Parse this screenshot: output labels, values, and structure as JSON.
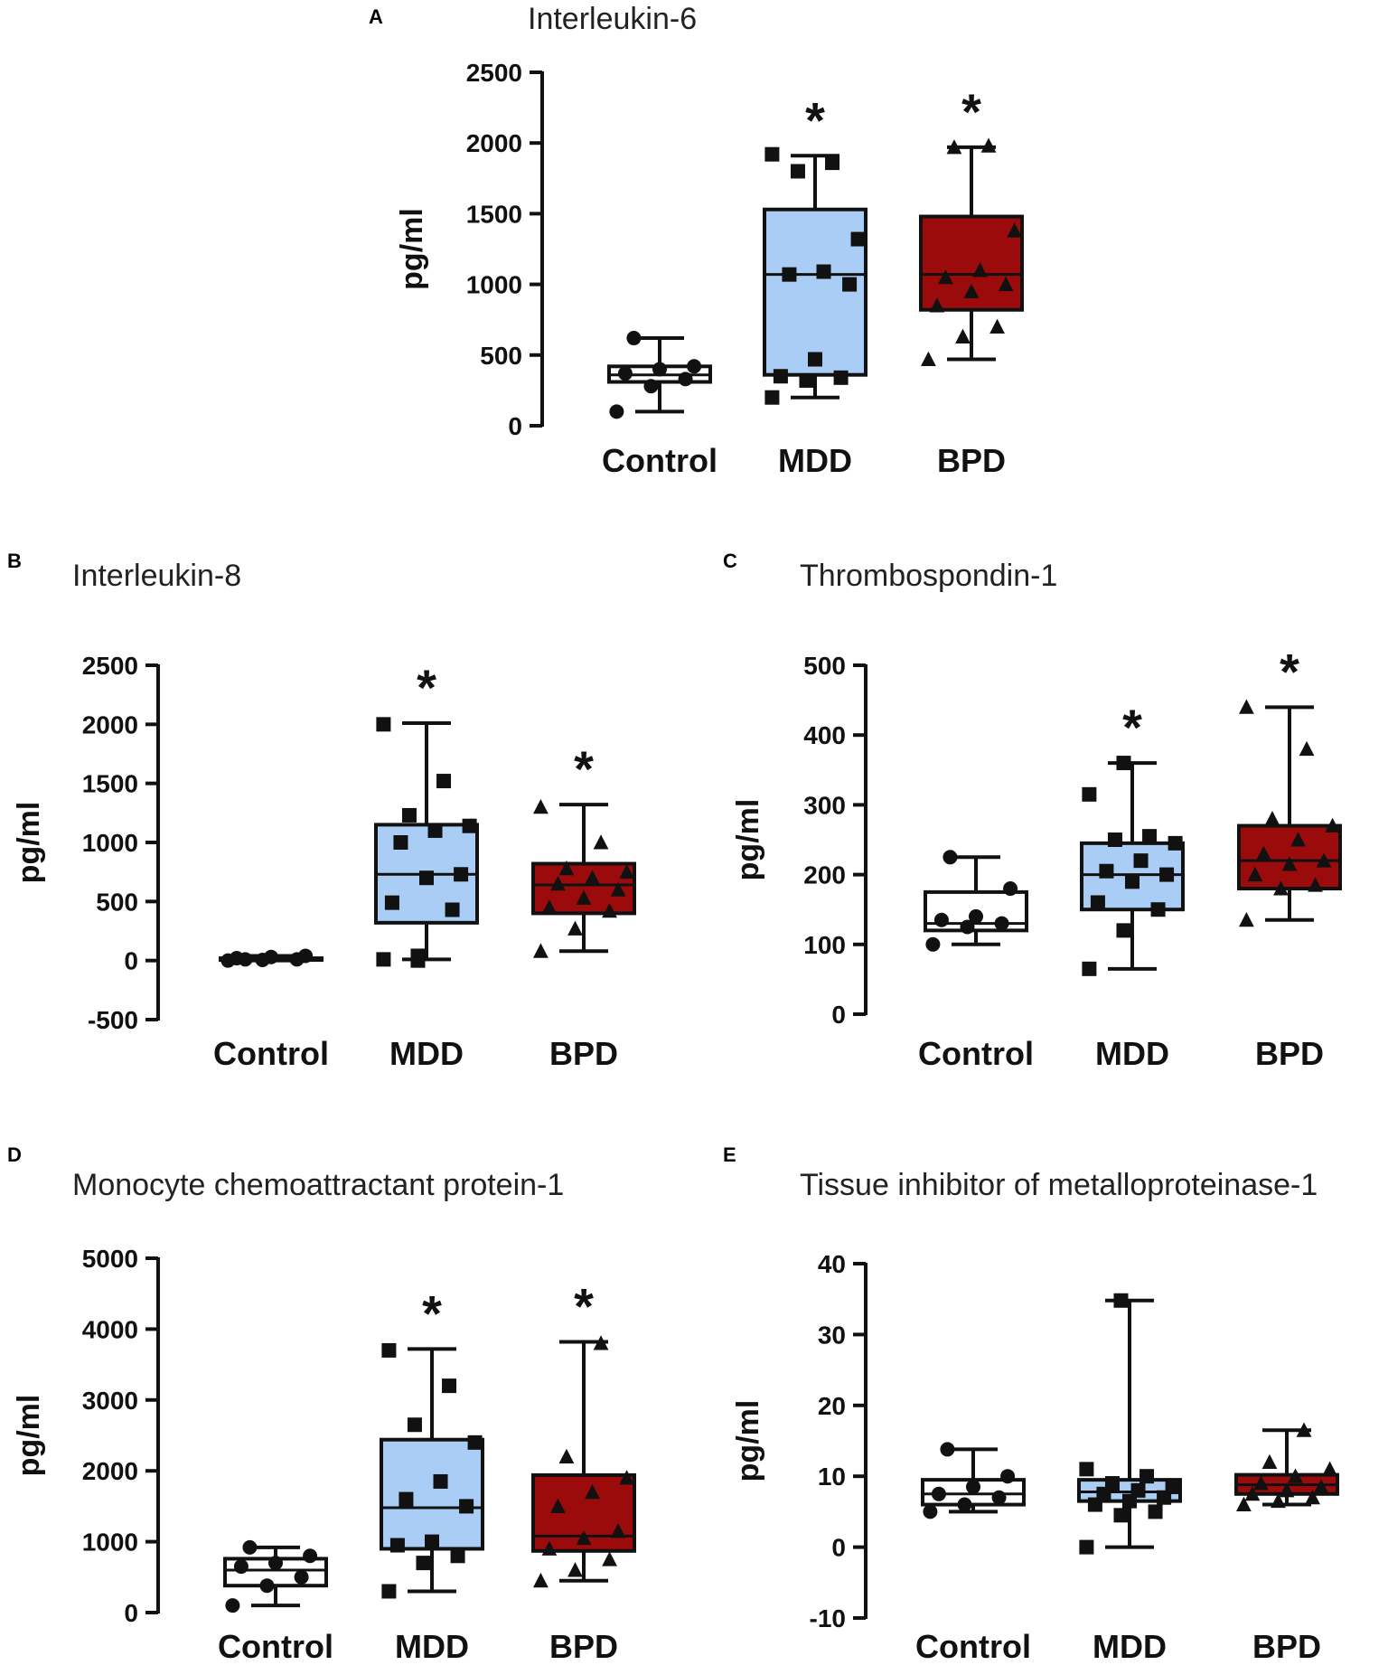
{
  "chart_data": [
    {
      "type": "box",
      "panel": "A",
      "title": "Interleukin-6",
      "ylabel": "pg/ml",
      "ylim": [
        0,
        2500
      ],
      "yticks": [
        0,
        500,
        1000,
        1500,
        2000,
        2500
      ],
      "categories": [
        "Control",
        "MDD",
        "BPD"
      ],
      "series": [
        {
          "name": "Control",
          "fill": "#ffffff",
          "marker": "circle",
          "min": 100,
          "q1": 310,
          "median": 360,
          "q3": 420,
          "max": 620,
          "significant": false,
          "points": [
            100,
            280,
            330,
            370,
            400,
            420,
            620
          ]
        },
        {
          "name": "MDD",
          "fill": "#a9cdf5",
          "marker": "square",
          "min": 200,
          "q1": 360,
          "median": 1070,
          "q3": 1530,
          "max": 1910,
          "significant": true,
          "points": [
            200,
            320,
            340,
            350,
            470,
            1000,
            1070,
            1090,
            1320,
            1800,
            1860,
            1920
          ]
        },
        {
          "name": "BPD",
          "fill": "#9b0b0b",
          "marker": "triangle",
          "min": 470,
          "q1": 820,
          "median": 1070,
          "q3": 1480,
          "max": 1970,
          "significant": true,
          "points": [
            470,
            630,
            700,
            850,
            950,
            1000,
            1050,
            1100,
            1380,
            1970,
            1980
          ]
        }
      ]
    },
    {
      "type": "box",
      "panel": "B",
      "title": "Interleukin-8",
      "ylabel": "pg/ml",
      "ylim": [
        -500,
        2500
      ],
      "yticks": [
        -500,
        0,
        500,
        1000,
        1500,
        2000,
        2500
      ],
      "categories": [
        "Control",
        "MDD",
        "BPD"
      ],
      "series": [
        {
          "name": "Control",
          "fill": "#ffffff",
          "marker": "circle",
          "min": 0,
          "q1": 5,
          "median": 10,
          "q3": 20,
          "max": 40,
          "significant": false,
          "points": [
            0,
            5,
            10,
            20,
            30,
            40,
            10
          ]
        },
        {
          "name": "MDD",
          "fill": "#a9cdf5",
          "marker": "square",
          "min": 10,
          "q1": 320,
          "median": 730,
          "q3": 1150,
          "max": 2010,
          "significant": true,
          "points": [
            10,
            40,
            430,
            490,
            700,
            730,
            1000,
            1100,
            1140,
            1230,
            1520,
            2000,
            0
          ]
        },
        {
          "name": "BPD",
          "fill": "#9b0b0b",
          "marker": "triangle",
          "min": 80,
          "q1": 400,
          "median": 640,
          "q3": 820,
          "max": 1320,
          "significant": true,
          "points": [
            80,
            270,
            420,
            450,
            530,
            600,
            650,
            700,
            750,
            780,
            1000,
            1300
          ]
        }
      ]
    },
    {
      "type": "box",
      "panel": "C",
      "title": "Thrombospondin-1",
      "ylabel": "pg/ml",
      "ylim": [
        0,
        500
      ],
      "yticks": [
        0,
        100,
        200,
        300,
        400,
        500
      ],
      "categories": [
        "Control",
        "MDD",
        "BPD"
      ],
      "series": [
        {
          "name": "Control",
          "fill": "#ffffff",
          "marker": "circle",
          "min": 100,
          "q1": 120,
          "median": 130,
          "q3": 175,
          "max": 225,
          "significant": false,
          "points": [
            100,
            125,
            130,
            135,
            140,
            180,
            225
          ]
        },
        {
          "name": "MDD",
          "fill": "#a9cdf5",
          "marker": "square",
          "min": 65,
          "q1": 150,
          "median": 200,
          "q3": 245,
          "max": 360,
          "significant": true,
          "points": [
            65,
            120,
            150,
            160,
            190,
            200,
            205,
            220,
            245,
            250,
            255,
            315,
            360
          ]
        },
        {
          "name": "BPD",
          "fill": "#9b0b0b",
          "marker": "triangle",
          "min": 135,
          "q1": 180,
          "median": 220,
          "q3": 270,
          "max": 440,
          "significant": true,
          "points": [
            135,
            180,
            185,
            200,
            215,
            220,
            230,
            250,
            270,
            280,
            380,
            440
          ]
        }
      ]
    },
    {
      "type": "box",
      "panel": "D",
      "title": "Monocyte chemoattractant protein-1",
      "ylabel": "pg/ml",
      "ylim": [
        0,
        5000
      ],
      "yticks": [
        0,
        1000,
        2000,
        3000,
        4000,
        5000
      ],
      "categories": [
        "Control",
        "MDD",
        "BPD"
      ],
      "series": [
        {
          "name": "Control",
          "fill": "#ffffff",
          "marker": "circle",
          "min": 100,
          "q1": 380,
          "median": 600,
          "q3": 760,
          "max": 920,
          "significant": false,
          "points": [
            100,
            380,
            500,
            650,
            700,
            800,
            920
          ]
        },
        {
          "name": "MDD",
          "fill": "#a9cdf5",
          "marker": "square",
          "min": 300,
          "q1": 900,
          "median": 1480,
          "q3": 2440,
          "max": 3720,
          "significant": true,
          "points": [
            300,
            700,
            800,
            950,
            1000,
            1500,
            1600,
            1850,
            2400,
            2650,
            3200,
            3700
          ]
        },
        {
          "name": "BPD",
          "fill": "#9b0b0b",
          "marker": "triangle",
          "min": 450,
          "q1": 870,
          "median": 1080,
          "q3": 1940,
          "max": 3820,
          "significant": true,
          "points": [
            450,
            600,
            750,
            900,
            1050,
            1150,
            1500,
            1700,
            1900,
            2200,
            3800
          ]
        }
      ]
    },
    {
      "type": "box",
      "panel": "E",
      "title": "Tissue inhibitor of metalloproteinase-1",
      "ylabel": "pg/ml",
      "ylim": [
        -10,
        40
      ],
      "yticks": [
        -10,
        0,
        10,
        20,
        30,
        40
      ],
      "categories": [
        "Control",
        "MDD",
        "BPD"
      ],
      "series": [
        {
          "name": "Control",
          "fill": "#ffffff",
          "marker": "circle",
          "min": 5,
          "q1": 6,
          "median": 7.5,
          "q3": 9.5,
          "max": 13.8,
          "significant": false,
          "points": [
            5,
            6,
            7,
            7.5,
            8.5,
            10,
            13.8
          ]
        },
        {
          "name": "MDD",
          "fill": "#a9cdf5",
          "marker": "square",
          "min": 0,
          "q1": 6.5,
          "median": 7.8,
          "q3": 9.5,
          "max": 34.8,
          "significant": false,
          "points": [
            0,
            4.5,
            5,
            6,
            6.5,
            7,
            7.5,
            8,
            8.5,
            9,
            10,
            11,
            34.8
          ]
        },
        {
          "name": "BPD",
          "fill": "#9b0b0b",
          "marker": "triangle",
          "min": 6,
          "q1": 7.5,
          "median": 8.8,
          "q3": 10.2,
          "max": 16.5,
          "significant": false,
          "points": [
            6,
            6.5,
            7,
            7.5,
            8,
            8.5,
            9,
            10,
            11,
            12,
            16.5
          ]
        }
      ]
    }
  ]
}
